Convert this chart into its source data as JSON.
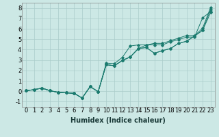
{
  "xlabel": "Humidex (Indice chaleur)",
  "background_color": "#cce8e5",
  "grid_color": "#aaccca",
  "line_color": "#1a7a6e",
  "xlim": [
    -0.5,
    23.5
  ],
  "ylim": [
    -1.5,
    8.5
  ],
  "xticks": [
    0,
    1,
    2,
    3,
    4,
    5,
    6,
    7,
    8,
    9,
    10,
    11,
    12,
    13,
    14,
    15,
    16,
    17,
    18,
    19,
    20,
    21,
    22,
    23
  ],
  "yticks": [
    -1,
    0,
    1,
    2,
    3,
    4,
    5,
    6,
    7,
    8
  ],
  "lines": [
    [
      0.05,
      0.15,
      0.3,
      0.05,
      -0.1,
      -0.15,
      -0.2,
      -0.65,
      0.45,
      -0.05,
      2.55,
      2.45,
      2.95,
      3.3,
      4.1,
      4.2,
      3.65,
      3.9,
      4.1,
      4.6,
      4.8,
      5.3,
      5.85,
      7.85
    ],
    [
      0.05,
      0.15,
      0.3,
      0.05,
      -0.1,
      -0.15,
      -0.2,
      -0.65,
      0.45,
      -0.05,
      2.55,
      2.45,
      2.95,
      3.3,
      4.1,
      4.2,
      3.65,
      3.9,
      4.1,
      4.6,
      4.8,
      5.3,
      5.85,
      7.55
    ],
    [
      0.05,
      0.15,
      0.3,
      0.05,
      -0.1,
      -0.15,
      -0.2,
      -0.65,
      0.45,
      -0.05,
      2.55,
      2.45,
      2.95,
      3.3,
      4.1,
      4.45,
      4.45,
      4.45,
      4.75,
      4.95,
      5.2,
      5.2,
      7.05,
      7.65
    ],
    [
      0.05,
      0.15,
      0.3,
      0.05,
      -0.1,
      -0.15,
      -0.2,
      -0.65,
      0.45,
      -0.05,
      2.7,
      2.65,
      3.25,
      4.35,
      4.45,
      4.45,
      4.6,
      4.6,
      4.85,
      5.1,
      5.35,
      5.35,
      6.05,
      8.05
    ]
  ],
  "fontsize_xlabel": 7,
  "fontsize_ticks": 6
}
